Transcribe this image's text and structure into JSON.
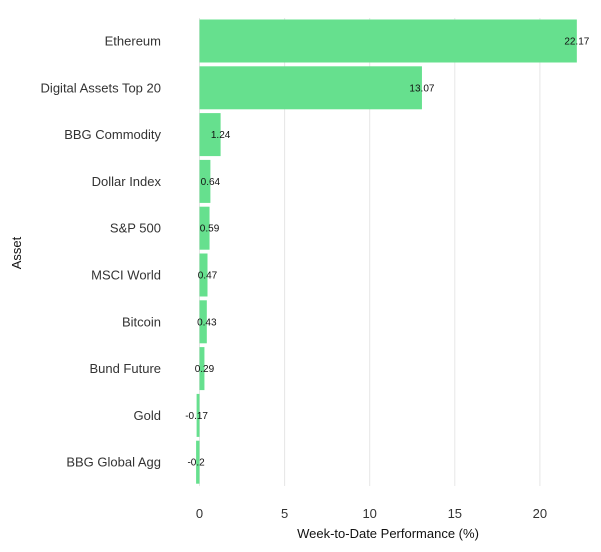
{
  "chart_data": {
    "type": "bar",
    "orientation": "horizontal",
    "title": "",
    "xlabel": "Week-to-Date Performance (%)",
    "ylabel": "Asset",
    "categories": [
      "Ethereum",
      "Digital Assets Top 20",
      "BBG Commodity",
      "Dollar Index",
      "S&P 500",
      "MSCI World",
      "Bitcoin",
      "Bund Future",
      "Gold",
      "BBG Global Agg"
    ],
    "values": [
      22.17,
      13.07,
      1.24,
      0.64,
      0.59,
      0.47,
      0.43,
      0.29,
      -0.17,
      -0.2
    ],
    "value_labels": [
      "22.17",
      "13.07",
      "1.24",
      "0.64",
      "0.59",
      "0.47",
      "0.43",
      "0.29",
      "-0.17",
      "-0.2"
    ],
    "xticks": [
      0,
      5,
      10,
      15,
      20
    ],
    "xtick_labels": [
      "0",
      "5",
      "10",
      "15",
      "20"
    ],
    "xlim": [
      -0.2,
      22.17
    ],
    "grid": "vertical",
    "bar_color": "#66e08e"
  }
}
